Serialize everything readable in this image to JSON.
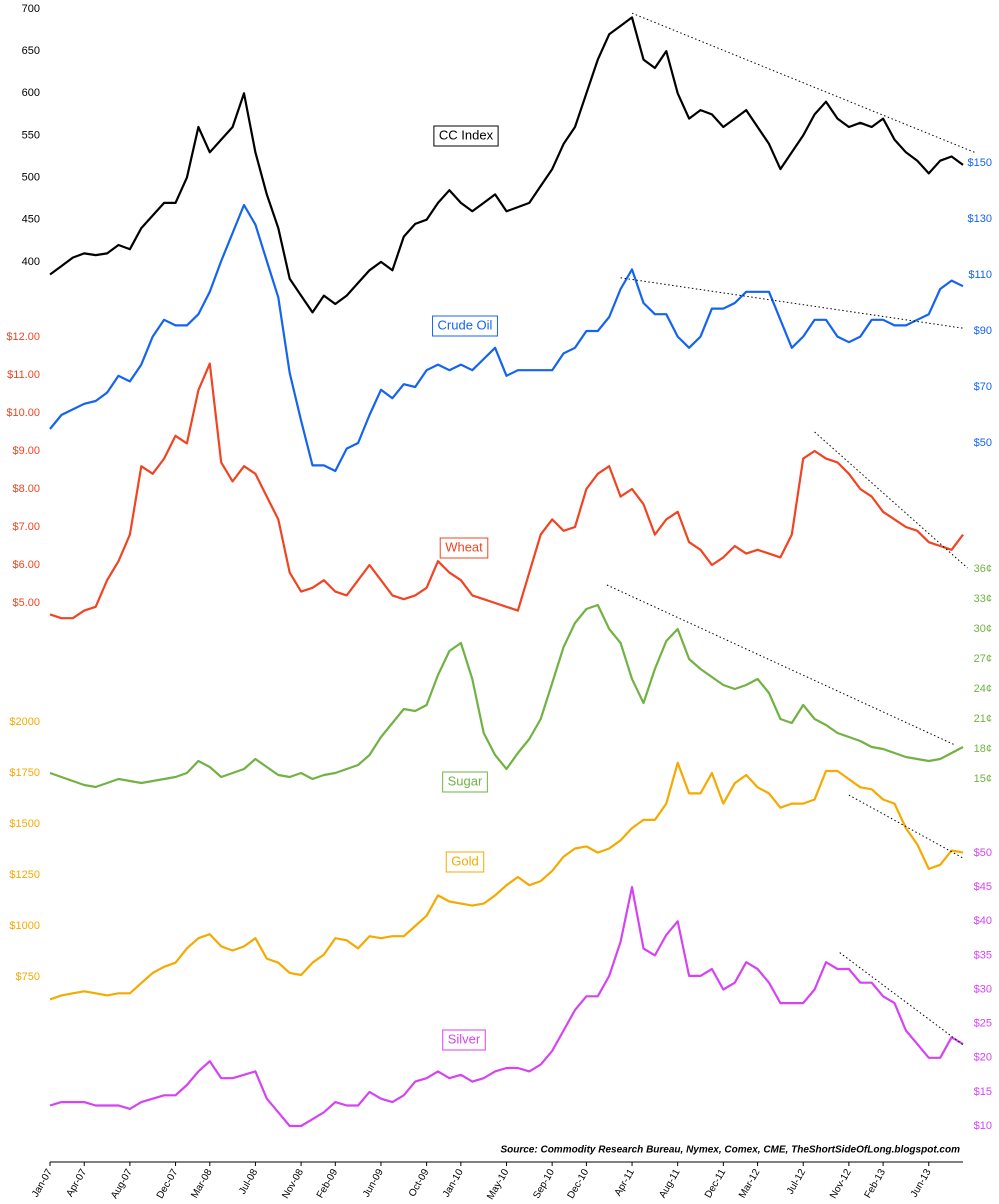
{
  "chart_data": {
    "type": "line",
    "categories": [
      "Jan-07",
      null,
      null,
      "Apr-07",
      null,
      null,
      null,
      "Aug-07",
      null,
      null,
      null,
      "Dec-07",
      null,
      null,
      "Mar-08",
      null,
      null,
      null,
      "Jul-08",
      null,
      null,
      null,
      "Nov-08",
      null,
      null,
      "Feb-09",
      null,
      null,
      null,
      "Jun-09",
      null,
      null,
      null,
      "Oct-09",
      null,
      null,
      "Jan-10",
      null,
      null,
      null,
      "May-10",
      null,
      null,
      null,
      "Sep-10",
      null,
      null,
      "Dec-10",
      null,
      null,
      null,
      "Apr-11",
      null,
      null,
      null,
      "Aug-11",
      null,
      null,
      null,
      "Dec-11",
      null,
      null,
      "Mar-12",
      null,
      null,
      null,
      "Jul-12",
      null,
      null,
      null,
      "Nov-12",
      null,
      null,
      "Feb-13",
      null,
      null,
      null,
      "Jun-13",
      null,
      null,
      null
    ],
    "source": "Source: Commodity Research Bureau, Nymex, Comex, CME, TheShortSideOfLong.blogspot.com",
    "series": [
      {
        "name": "CC Index",
        "color": "#000000",
        "axis": "left",
        "ylim": [
          350,
          700
        ],
        "yticks": [
          400,
          450,
          500,
          550,
          600,
          650,
          700
        ],
        "values": [
          385,
          395,
          405,
          410,
          408,
          410,
          420,
          415,
          440,
          455,
          470,
          470,
          500,
          560,
          530,
          545,
          560,
          600,
          530,
          480,
          440,
          380,
          360,
          340,
          360,
          350,
          360,
          375,
          390,
          400,
          390,
          430,
          445,
          450,
          470,
          485,
          470,
          460,
          470,
          480,
          460,
          465,
          470,
          490,
          510,
          540,
          560,
          600,
          640,
          670,
          680,
          690,
          640,
          630,
          650,
          600,
          570,
          580,
          575,
          560,
          570,
          580,
          560,
          540,
          510,
          530,
          550,
          575,
          590,
          570,
          560,
          565,
          560,
          570,
          545,
          530,
          520,
          505,
          520,
          525,
          515
        ],
        "trend": {
          "x": [
            51,
            81
          ],
          "values": [
            695,
            530
          ]
        }
      },
      {
        "name": "Crude Oil",
        "color": "#1464f0",
        "axis": "right",
        "ylim": [
          30,
          150
        ],
        "yticks": [
          {
            "value": 50,
            "label": "$50"
          },
          {
            "value": 70,
            "label": "$70"
          },
          {
            "value": 90,
            "label": "$90"
          },
          {
            "value": 110,
            "label": "$110"
          },
          {
            "value": 130,
            "label": "$130"
          },
          {
            "value": 150,
            "label": "$150"
          }
        ],
        "values": [
          55,
          60,
          62,
          64,
          65,
          68,
          74,
          72,
          78,
          88,
          94,
          92,
          92,
          96,
          104,
          115,
          125,
          135,
          128,
          115,
          102,
          75,
          58,
          42,
          42,
          40,
          48,
          50,
          60,
          69,
          66,
          71,
          70,
          76,
          78,
          76,
          78,
          76,
          80,
          84,
          74,
          76,
          76,
          76,
          76,
          82,
          84,
          90,
          90,
          95,
          105,
          112,
          100,
          96,
          96,
          88,
          84,
          88,
          98,
          98,
          100,
          104,
          104,
          104,
          94,
          84,
          88,
          94,
          94,
          88,
          86,
          88,
          94,
          94,
          92,
          92,
          94,
          96,
          105,
          108,
          106
        ],
        "trend": {
          "x": [
            50,
            80
          ],
          "values": [
            109,
            91
          ]
        }
      },
      {
        "name": "Wheat",
        "color": "#f04422",
        "axis": "left",
        "ylim": [
          4,
          12
        ],
        "yticks": [
          {
            "value": 5,
            "label": "$5.00"
          },
          {
            "value": 6,
            "label": "$6.00"
          },
          {
            "value": 7,
            "label": "$7.00"
          },
          {
            "value": 8,
            "label": "$8.00"
          },
          {
            "value": 9,
            "label": "$9.00"
          },
          {
            "value": 10,
            "label": "$10.00"
          },
          {
            "value": 11,
            "label": "$11.00"
          },
          {
            "value": 12,
            "label": "$12.00"
          }
        ],
        "values": [
          4.7,
          4.6,
          4.6,
          4.8,
          4.9,
          5.6,
          6.1,
          6.8,
          8.6,
          8.4,
          8.8,
          9.4,
          9.2,
          10.6,
          11.3,
          8.7,
          8.2,
          8.6,
          8.4,
          7.8,
          7.2,
          5.8,
          5.3,
          5.4,
          5.6,
          5.3,
          5.2,
          5.6,
          6.0,
          5.6,
          5.2,
          5.1,
          5.2,
          5.4,
          6.1,
          5.8,
          5.6,
          5.2,
          5.1,
          5.0,
          4.9,
          4.8,
          5.8,
          6.8,
          7.2,
          6.9,
          7.0,
          8.0,
          8.4,
          8.6,
          7.8,
          8.0,
          7.6,
          6.8,
          7.2,
          7.4,
          6.6,
          6.4,
          6.0,
          6.2,
          6.5,
          6.3,
          6.4,
          6.3,
          6.2,
          6.8,
          8.8,
          9.0,
          8.8,
          8.7,
          8.4,
          8.0,
          7.8,
          7.4,
          7.2,
          7.0,
          6.9,
          6.6,
          6.5,
          6.4,
          6.8
        ],
        "trend": {
          "x": [
            67,
            80.4
          ],
          "values": [
            9.5,
            5.92
          ]
        }
      },
      {
        "name": "Sugar",
        "color": "#72b244",
        "axis": "right",
        "ylim": [
          12,
          36
        ],
        "yticks": [
          {
            "value": 15,
            "label": "15¢"
          },
          {
            "value": 18,
            "label": "18¢"
          },
          {
            "value": 21,
            "label": "21¢"
          },
          {
            "value": 24,
            "label": "24¢"
          },
          {
            "value": 27,
            "label": "27¢"
          },
          {
            "value": 30,
            "label": "30¢"
          },
          {
            "value": 33,
            "label": "33¢"
          },
          {
            "value": 36,
            "label": "36¢"
          }
        ],
        "values": [
          15.6,
          15.2,
          14.8,
          14.4,
          14.2,
          14.6,
          15.0,
          14.8,
          14.6,
          14.8,
          15.0,
          15.2,
          15.6,
          16.8,
          16.2,
          15.2,
          15.6,
          16.0,
          17.0,
          16.2,
          15.4,
          15.2,
          15.6,
          15.0,
          15.4,
          15.6,
          16.0,
          16.4,
          17.4,
          19.2,
          20.6,
          22.0,
          21.8,
          22.4,
          25.4,
          27.8,
          28.6,
          25.0,
          19.6,
          17.4,
          16.0,
          17.6,
          19.0,
          21.0,
          24.6,
          28.2,
          30.6,
          32.0,
          32.4,
          30.0,
          28.6,
          25.0,
          22.6,
          26.0,
          28.8,
          30.0,
          27.0,
          26.0,
          25.2,
          24.4,
          24.0,
          24.4,
          25.0,
          23.6,
          21.0,
          20.6,
          22.4,
          21.0,
          20.4,
          19.6,
          19.2,
          18.8,
          18.2,
          18.0,
          17.6,
          17.2,
          17.0,
          16.8,
          17.0,
          17.6,
          18.2
        ],
        "trend": {
          "x": [
            48.8,
            79.3
          ],
          "values": [
            34.4,
            18.4
          ]
        }
      },
      {
        "name": "Gold",
        "color": "#f4aa00",
        "axis": "left",
        "ylim": [
          500,
          2000
        ],
        "yticks": [
          {
            "value": 750,
            "label": "$750"
          },
          {
            "value": 1000,
            "label": "$1000"
          },
          {
            "value": 1250,
            "label": "$1250"
          },
          {
            "value": 1500,
            "label": "$1500"
          },
          {
            "value": 1750,
            "label": "$1750"
          },
          {
            "value": 2000,
            "label": "$2000"
          }
        ],
        "values": [
          640,
          660,
          670,
          680,
          670,
          660,
          670,
          670,
          720,
          770,
          800,
          820,
          890,
          940,
          960,
          900,
          880,
          900,
          940,
          840,
          820,
          770,
          760,
          820,
          860,
          940,
          930,
          890,
          950,
          940,
          950,
          950,
          1000,
          1050,
          1150,
          1120,
          1110,
          1100,
          1110,
          1150,
          1200,
          1240,
          1200,
          1220,
          1270,
          1340,
          1380,
          1390,
          1360,
          1380,
          1420,
          1480,
          1520,
          1520,
          1600,
          1800,
          1650,
          1650,
          1750,
          1600,
          1700,
          1740,
          1680,
          1650,
          1580,
          1600,
          1600,
          1620,
          1760,
          1760,
          1720,
          1680,
          1670,
          1620,
          1600,
          1480,
          1400,
          1280,
          1300,
          1370,
          1360
        ],
        "trend": {
          "x": [
            70,
            80
          ],
          "values": [
            1642,
            1333
          ]
        }
      },
      {
        "name": "Silver",
        "color": "#d444f2",
        "axis": "right",
        "ylim": [
          10,
          50
        ],
        "yticks": [
          {
            "value": 10,
            "label": "$10"
          },
          {
            "value": 15,
            "label": "$15"
          },
          {
            "value": 20,
            "label": "$20"
          },
          {
            "value": 25,
            "label": "$25"
          },
          {
            "value": 30,
            "label": "$30"
          },
          {
            "value": 35,
            "label": "$35"
          },
          {
            "value": 40,
            "label": "$40"
          },
          {
            "value": 45,
            "label": "$45"
          },
          {
            "value": 50,
            "label": "$50"
          }
        ],
        "values": [
          13,
          13.5,
          13.5,
          13.5,
          13,
          13,
          13,
          12.5,
          13.5,
          14,
          14.5,
          14.5,
          16,
          18,
          19.5,
          17,
          17,
          17.5,
          18,
          14,
          12,
          10,
          10,
          11,
          12,
          13.5,
          13,
          13,
          15,
          14,
          13.5,
          14.5,
          16.5,
          17,
          18,
          17,
          17.5,
          16.5,
          17,
          18,
          18.5,
          18.5,
          18,
          19,
          21,
          24,
          27,
          29,
          29,
          32,
          37,
          45,
          36,
          35,
          38,
          40,
          32,
          32,
          33,
          30,
          31,
          34,
          33,
          31,
          28,
          28,
          28,
          30,
          34,
          33,
          33,
          31,
          31,
          29,
          28,
          24,
          22,
          20,
          20,
          23,
          22
        ],
        "trend": {
          "x": [
            69.2,
            80
          ],
          "values": [
            35.4,
            21.9
          ]
        }
      }
    ]
  }
}
